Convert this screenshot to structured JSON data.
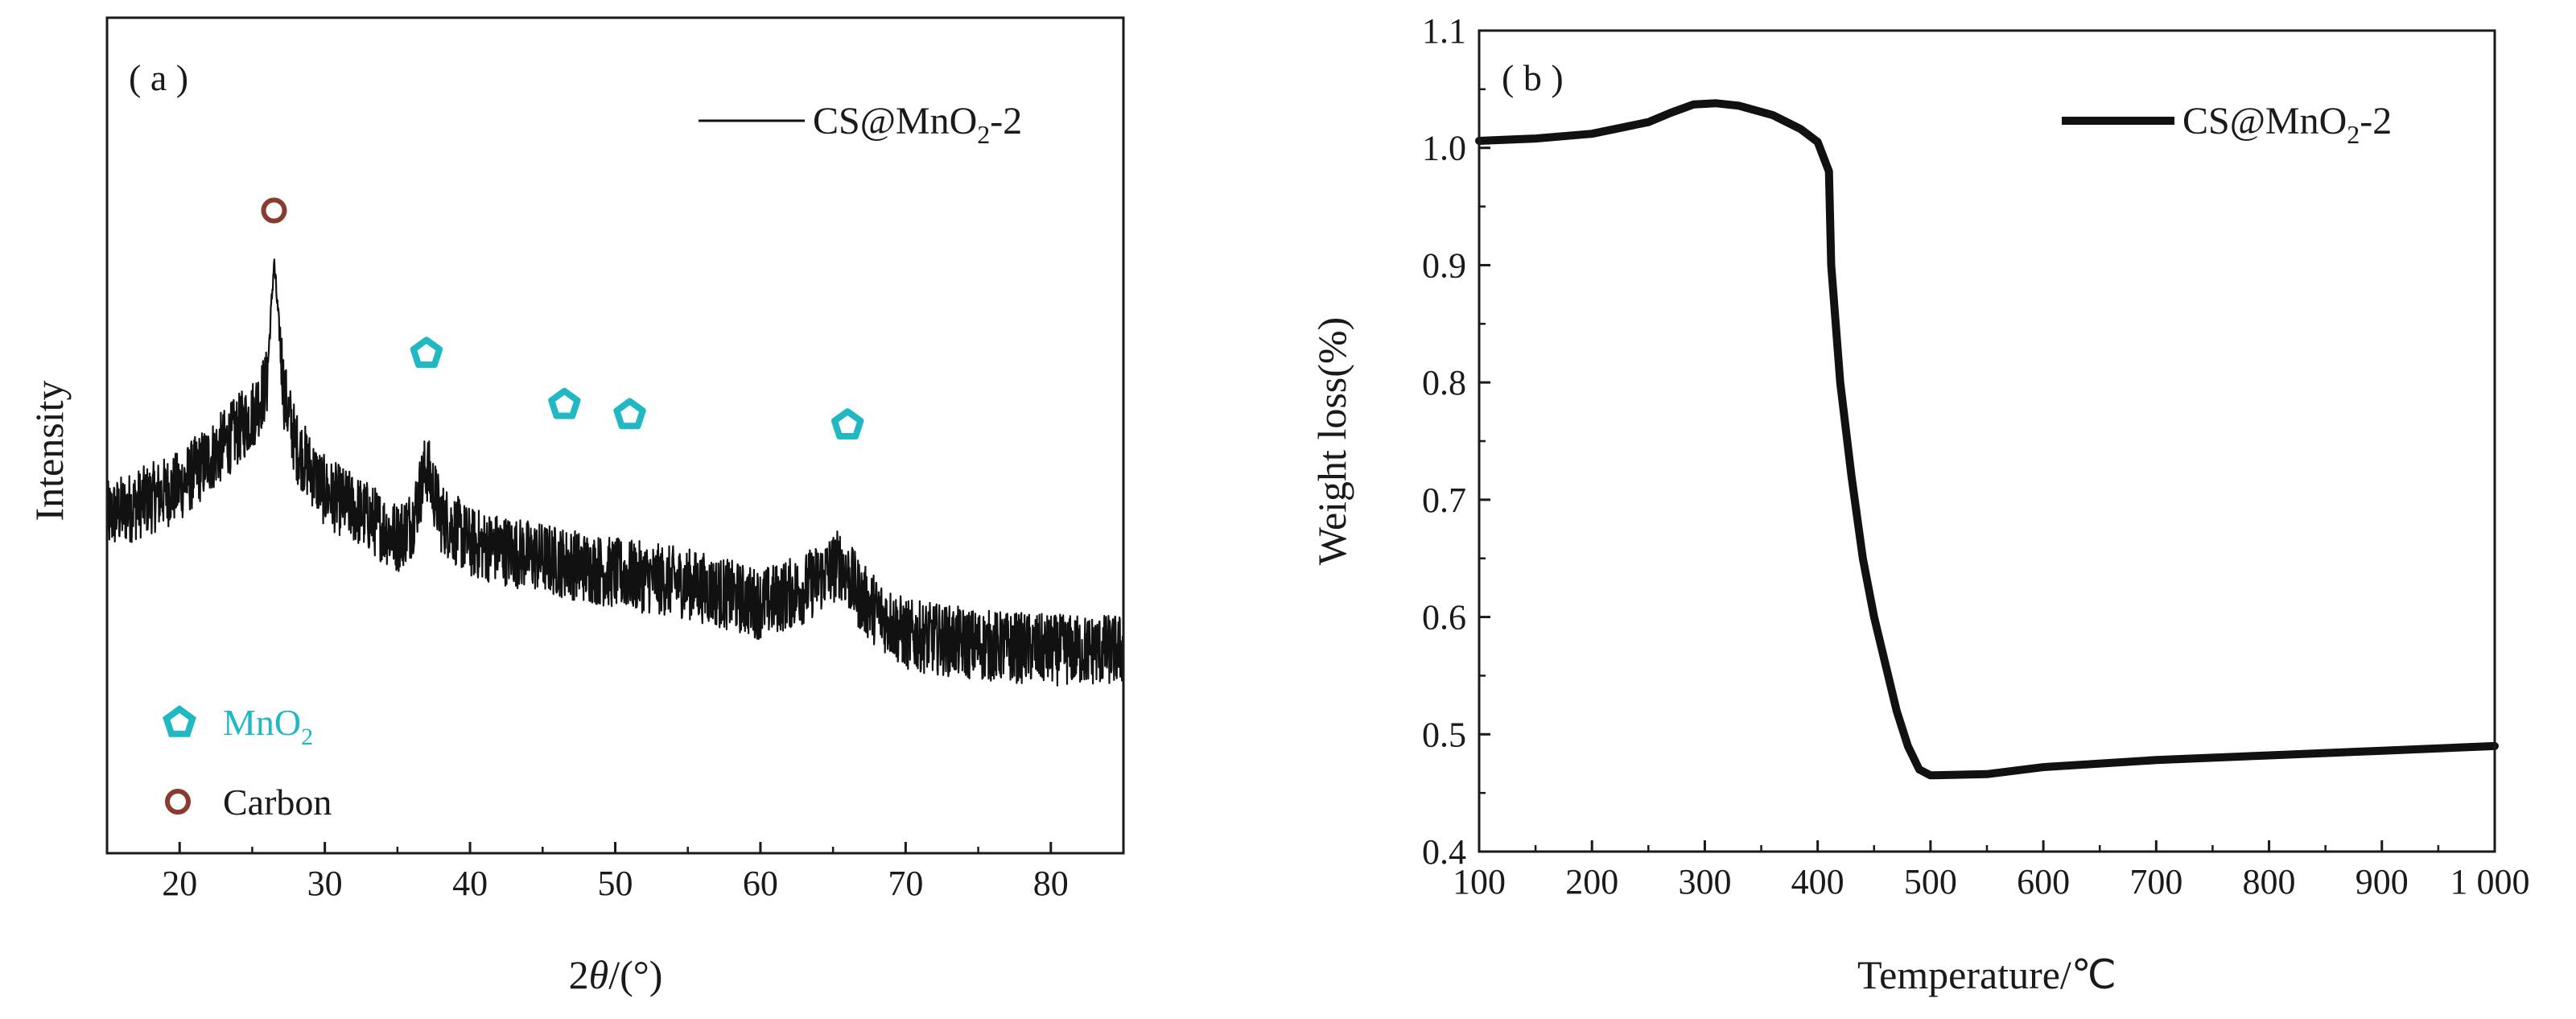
{
  "chart_data": [
    {
      "panel": "( a )",
      "type": "line",
      "title": "",
      "xlabel_prefix": "2",
      "xlabel_symbol": "θ",
      "xlabel_suffix": "/(°)",
      "ylabel": "Intensity",
      "xlim": [
        15,
        85
      ],
      "xticks": [
        20,
        30,
        40,
        50,
        60,
        70,
        80
      ],
      "yticks_shown": false,
      "grid": false,
      "legend": {
        "placement": "top-right",
        "label_main": "CS@MnO",
        "label_sub": "2",
        "label_tail": "-2"
      },
      "series": [
        {
          "name": "CS@MnO2-2",
          "color": "#111111",
          "noise_amplitude": 7,
          "baseline_points": [
            [
              15,
              50
            ],
            [
              20,
              56
            ],
            [
              23,
              64
            ],
            [
              25,
              70
            ],
            [
              26.0,
              76
            ],
            [
              26.5,
              100
            ],
            [
              27.2,
              74
            ],
            [
              28,
              64
            ],
            [
              30,
              55
            ],
            [
              33,
              50
            ],
            [
              35,
              46
            ],
            [
              36,
              49
            ],
            [
              37,
              60
            ],
            [
              38,
              50
            ],
            [
              40,
              45
            ],
            [
              45,
              42
            ],
            [
              50,
              39
            ],
            [
              55,
              37
            ],
            [
              60,
              33
            ],
            [
              63,
              36
            ],
            [
              65.5,
              41
            ],
            [
              67,
              34
            ],
            [
              70,
              27
            ],
            [
              75,
              25
            ],
            [
              80,
              24
            ],
            [
              85,
              24
            ]
          ]
        }
      ],
      "peak_markers": [
        {
          "phase": "Carbon",
          "x": 26.5,
          "y": 110
        },
        {
          "phase": "MnO2",
          "x": 37,
          "y": 82
        },
        {
          "phase": "MnO2",
          "x": 46.5,
          "y": 72
        },
        {
          "phase": "MnO2",
          "x": 51,
          "y": 70
        },
        {
          "phase": "MnO2",
          "x": 66,
          "y": 68
        }
      ],
      "phase_legend": [
        {
          "phase": "MnO2",
          "label_main": "MnO",
          "label_sub": "2",
          "color": "#1fb8c3"
        },
        {
          "phase": "Carbon",
          "label_main": "Carbon",
          "label_sub": "",
          "color": "#8b3a2f"
        }
      ]
    },
    {
      "panel": "( b )",
      "type": "line",
      "title": "",
      "xlabel": "Temperature/℃",
      "ylabel": "Weight loss(%)",
      "xlim": [
        100,
        1000
      ],
      "ylim": [
        0.4,
        1.1
      ],
      "xticks": [
        100,
        200,
        300,
        400,
        500,
        600,
        700,
        800,
        900,
        1000
      ],
      "xtick_labels": [
        "100",
        "200",
        "300",
        "400",
        "500",
        "600",
        "700",
        "800",
        "900",
        "1 000"
      ],
      "yticks": [
        0.4,
        0.5,
        0.6,
        0.7,
        0.8,
        0.9,
        1.0,
        1.1
      ],
      "ytick_labels": [
        "0.4",
        "0.5",
        "0.6",
        "0.7",
        "0.8",
        "0.9",
        "1.0",
        "1.1"
      ],
      "grid": false,
      "legend": {
        "placement": "top-right",
        "label_main": "CS@MnO",
        "label_sub": "2",
        "label_tail": "-2"
      },
      "series": [
        {
          "name": "CS@MnO2-2",
          "color": "#111111",
          "x": [
            100,
            150,
            200,
            250,
            270,
            290,
            310,
            330,
            360,
            385,
            400,
            410,
            412,
            420,
            430,
            440,
            450,
            460,
            470,
            480,
            490,
            500,
            550,
            600,
            700,
            800,
            900,
            1000
          ],
          "y": [
            1.006,
            1.008,
            1.012,
            1.022,
            1.03,
            1.037,
            1.038,
            1.036,
            1.028,
            1.016,
            1.005,
            0.98,
            0.9,
            0.8,
            0.72,
            0.65,
            0.6,
            0.56,
            0.52,
            0.49,
            0.47,
            0.465,
            0.466,
            0.472,
            0.478,
            0.482,
            0.486,
            0.49
          ]
        }
      ]
    }
  ]
}
